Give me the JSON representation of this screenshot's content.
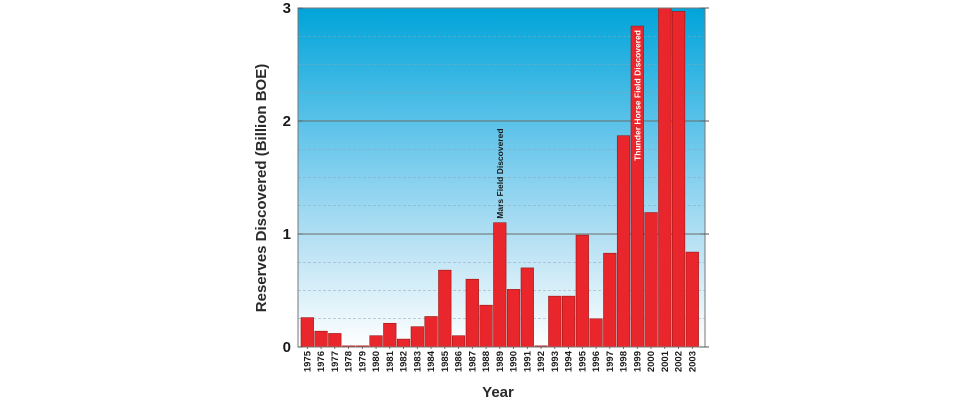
{
  "chart_data": {
    "type": "bar",
    "title": "",
    "xlabel": "Year",
    "ylabel": "Reserves Discovered  (Billion BOE)",
    "ylim": [
      0,
      3
    ],
    "yticks": [
      "0",
      "1",
      "2",
      "3"
    ],
    "grid": true,
    "categories": [
      "1975",
      "1976",
      "1977",
      "1978",
      "1979",
      "1980",
      "1981",
      "1982",
      "1983",
      "1984",
      "1985",
      "1986",
      "1987",
      "1988",
      "1989",
      "1990",
      "1991",
      "1992",
      "1993",
      "1994",
      "1995",
      "1996",
      "1997",
      "1998",
      "1999",
      "2000",
      "2001",
      "2002",
      "2003"
    ],
    "values": [
      0.26,
      0.14,
      0.12,
      0.01,
      0.01,
      0.1,
      0.21,
      0.07,
      0.18,
      0.27,
      0.68,
      0.1,
      0.6,
      0.37,
      1.1,
      0.51,
      0.7,
      0.01,
      0.45,
      0.45,
      0.99,
      0.25,
      0.83,
      1.87,
      2.84,
      1.19,
      3.0,
      2.97,
      0.84
    ],
    "annotations": [
      {
        "category": "1989",
        "text": "Mars Field Discovered",
        "placement": "above-bar",
        "color": "#1a1a1a"
      },
      {
        "category": "1999",
        "text": "Thunder Horse Field Discovered",
        "placement": "inside-bar",
        "color": "#ffffff"
      }
    ],
    "colors": {
      "bar": "#e8262b",
      "bar_edge": "#9a1a1a",
      "background_top": "#00a3d8",
      "background_bottom": "#ffffff",
      "frame": "#777777"
    }
  }
}
